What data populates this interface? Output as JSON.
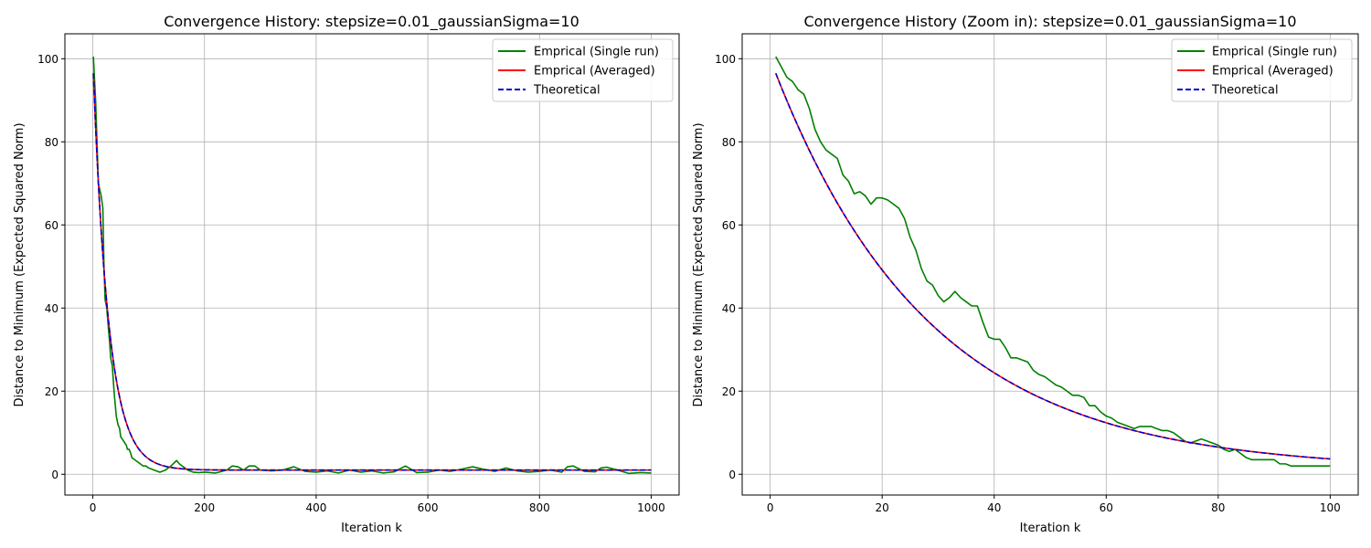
{
  "chart_data": [
    {
      "type": "line",
      "title": "Convergence History: stepsize=0.01_gaussianSigma=10",
      "xlabel": "Iteration k",
      "ylabel": "Distance to Minimum (Expected Squared Norm)",
      "xlim": [
        -50,
        1050
      ],
      "ylim": [
        -5,
        106
      ],
      "xticks": [
        "0",
        "200",
        "400",
        "600",
        "800",
        "1000"
      ],
      "yticks": [
        "0",
        "20",
        "40",
        "60",
        "80",
        "100"
      ],
      "grid": true,
      "legend_position": "upper right",
      "series": [
        {
          "name": "Emprical (Single run)",
          "color": "#008000",
          "style": "solid",
          "x": [
            1,
            5,
            10,
            15,
            18,
            20,
            22,
            25,
            28,
            30,
            32,
            35,
            38,
            40,
            42,
            45,
            48,
            50,
            55,
            60,
            62,
            65,
            68,
            70,
            75,
            80,
            85,
            90,
            95,
            100,
            110,
            120,
            130,
            140,
            150,
            155,
            160,
            170,
            180,
            190,
            200,
            220,
            240,
            250,
            260,
            270,
            280,
            290,
            300,
            320,
            340,
            360,
            380,
            400,
            420,
            440,
            460,
            480,
            500,
            520,
            540,
            560,
            580,
            600,
            620,
            640,
            660,
            680,
            700,
            720,
            740,
            760,
            780,
            800,
            820,
            840,
            850,
            860,
            880,
            900,
            910,
            920,
            940,
            960,
            980,
            1000
          ],
          "y": [
            100.5,
            90,
            70,
            67,
            64,
            50,
            42,
            40,
            35,
            32,
            28,
            26,
            20,
            17,
            14,
            12,
            11,
            9,
            8,
            7,
            6,
            6,
            5,
            4,
            3.5,
            3,
            2.5,
            2,
            2,
            1.5,
            1,
            0.5,
            1,
            2,
            3.3,
            2.5,
            2,
            1,
            0.5,
            0.4,
            0.5,
            0.3,
            1,
            2,
            1.8,
            1,
            2,
            2,
            1,
            0.8,
            1,
            1.8,
            0.7,
            0.5,
            0.8,
            0.3,
            1,
            0.5,
            0.8,
            0.3,
            0.6,
            2,
            0.4,
            0.5,
            1,
            0.7,
            1.2,
            1.8,
            1.2,
            0.7,
            1.5,
            0.8,
            0.5,
            0.7,
            1,
            0.5,
            1.8,
            2,
            0.7,
            0.6,
            1.5,
            1.7,
            1,
            0.2,
            0.4,
            0.3
          ]
        },
        {
          "name": "Emprical (Averaged)",
          "color": "#ff0000",
          "style": "solid",
          "function": "theoretical_curve"
        },
        {
          "name": "Theoretical",
          "color": "#0000cc",
          "style": "dashed",
          "function": "theoretical_curve"
        }
      ]
    },
    {
      "type": "line",
      "title": "Convergence History (Zoom in): stepsize=0.01_gaussianSigma=10",
      "xlabel": "Iteration k",
      "ylabel": "Distance to Minimum (Expected Squared Norm)",
      "xlim": [
        -5,
        105
      ],
      "ylim": [
        -5,
        106
      ],
      "xticks": [
        "0",
        "20",
        "40",
        "60",
        "80",
        "100"
      ],
      "yticks": [
        "0",
        "20",
        "40",
        "60",
        "80",
        "100"
      ],
      "grid": true,
      "legend_position": "upper right",
      "series": [
        {
          "name": "Emprical (Single run)",
          "color": "#008000",
          "style": "solid",
          "x": [
            1,
            2,
            3,
            4,
            5,
            6,
            7,
            8,
            9,
            10,
            11,
            12,
            13,
            14,
            15,
            16,
            17,
            18,
            19,
            20,
            21,
            22,
            23,
            24,
            25,
            26,
            27,
            28,
            29,
            30,
            31,
            32,
            33,
            34,
            35,
            36,
            37,
            38,
            39,
            40,
            41,
            42,
            43,
            44,
            45,
            46,
            47,
            48,
            49,
            50,
            51,
            52,
            53,
            54,
            55,
            56,
            57,
            58,
            59,
            60,
            61,
            62,
            63,
            64,
            65,
            66,
            67,
            68,
            69,
            70,
            71,
            72,
            73,
            74,
            75,
            76,
            77,
            78,
            79,
            80,
            81,
            82,
            83,
            84,
            85,
            86,
            87,
            88,
            89,
            90,
            91,
            92,
            93,
            94,
            95,
            96,
            97,
            98,
            99,
            100
          ],
          "y": [
            100.5,
            98,
            95.5,
            94.5,
            92.5,
            91.5,
            88,
            83,
            80,
            78,
            77,
            76,
            72,
            70.5,
            67.5,
            68,
            67,
            65,
            66.5,
            66.5,
            66,
            65,
            64,
            61.5,
            57,
            54,
            49.5,
            46.5,
            45.5,
            43,
            41.5,
            42.5,
            44,
            42.5,
            41.5,
            40.5,
            40.5,
            36.5,
            33,
            32.5,
            32.5,
            30.5,
            28,
            28,
            27.5,
            27,
            25,
            24,
            23.5,
            22.5,
            21.5,
            21,
            20,
            19,
            19,
            18.5,
            16.5,
            16.5,
            15,
            14,
            13.5,
            12.5,
            12,
            11.5,
            11,
            11.5,
            11.5,
            11.5,
            11,
            10.5,
            10.5,
            10,
            9,
            8,
            7.5,
            8,
            8.5,
            8,
            7.5,
            7,
            6,
            5.5,
            6,
            5,
            4,
            3.5,
            3.5,
            3.5,
            3.5,
            3.5,
            2.5,
            2.5,
            2,
            2,
            2,
            2,
            2,
            2,
            2,
            2
          ]
        },
        {
          "name": "Emprical (Averaged)",
          "color": "#ff0000",
          "style": "solid",
          "function": "theoretical_curve"
        },
        {
          "name": "Theoretical",
          "color": "#0000cc",
          "style": "dashed",
          "function": "theoretical_curve"
        }
      ]
    }
  ]
}
